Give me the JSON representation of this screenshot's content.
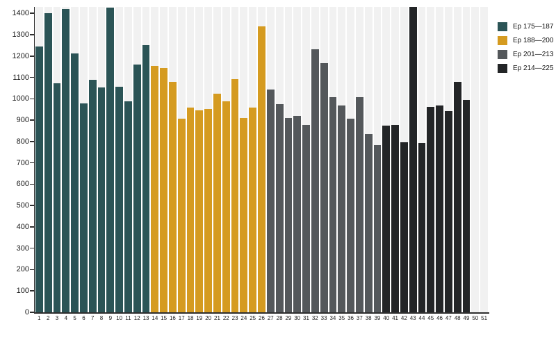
{
  "chart_data": {
    "type": "bar",
    "title": "",
    "xlabel": "",
    "ylabel": "",
    "ylim": [
      0,
      1430
    ],
    "yticks": [
      0,
      100,
      200,
      300,
      400,
      500,
      600,
      700,
      800,
      900,
      1000,
      1100,
      1200,
      1300,
      1400
    ],
    "grid": false,
    "background_stripe_color": "#f1f1f1",
    "axis_color": "#2e2e2e",
    "legend_position": "top-right",
    "x": [
      1,
      2,
      3,
      4,
      5,
      6,
      7,
      8,
      9,
      10,
      11,
      12,
      13,
      14,
      15,
      16,
      17,
      18,
      19,
      20,
      21,
      22,
      23,
      24,
      25,
      26,
      27,
      28,
      29,
      30,
      31,
      32,
      33,
      34,
      35,
      36,
      37,
      38,
      39,
      40,
      41,
      42,
      43,
      44,
      45,
      46,
      47,
      48,
      49,
      50,
      51
    ],
    "values": [
      1245,
      1400,
      1072,
      1420,
      1212,
      977,
      1088,
      1054,
      1428,
      1058,
      988,
      1160,
      1252,
      1153,
      1143,
      1078,
      907,
      958,
      947,
      952,
      1023,
      988,
      1092,
      909,
      960,
      1340,
      1045,
      976,
      911,
      920,
      877,
      1231,
      1167,
      1008,
      968,
      906,
      1008,
      835,
      782,
      875,
      878,
      795,
      1430,
      793,
      963,
      970,
      942,
      1080,
      996,
      null,
      null
    ],
    "groups": [
      {
        "name": "Ep 175—187",
        "color": "#2b5456",
        "from": 1,
        "to": 13
      },
      {
        "name": "Ep 188—200",
        "color": "#d59b20",
        "from": 14,
        "to": 26
      },
      {
        "name": "Ep 201—213",
        "color": "#54585b",
        "from": 27,
        "to": 39
      },
      {
        "name": "Ep 214—225",
        "color": "#232527",
        "from": 40,
        "to": 51
      }
    ]
  }
}
